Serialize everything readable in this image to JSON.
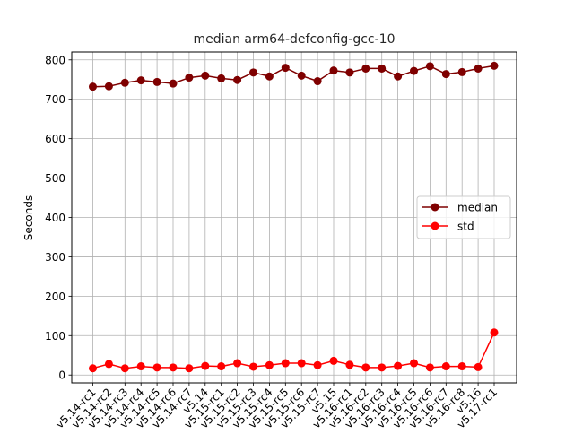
{
  "chart_data": {
    "type": "line",
    "title": "median arm64-defconfig-gcc-10",
    "xlabel": "",
    "ylabel": "Seconds",
    "ylim": [
      -20,
      820
    ],
    "yticks": [
      0,
      100,
      200,
      300,
      400,
      500,
      600,
      700,
      800
    ],
    "grid": true,
    "legend_placement": "center-right",
    "categories": [
      "v5.14-rc1",
      "v5.14-rc2",
      "v5.14-rc3",
      "v5.14-rc4",
      "v5.14-rc5",
      "v5.14-rc6",
      "v5.14-rc7",
      "v5.14",
      "v5.15-rc1",
      "v5.15-rc2",
      "v5.15-rc3",
      "v5.15-rc4",
      "v5.15-rc5",
      "v5.15-rc6",
      "v5.15-rc7",
      "v5.15",
      "v5.16-rc1",
      "v5.16-rc2",
      "v5.16-rc3",
      "v5.16-rc4",
      "v5.16-rc5",
      "v5.16-rc6",
      "v5.16-rc7",
      "v5.16-rc8",
      "v5.16",
      "v5.17-rc1"
    ],
    "series": [
      {
        "name": "median",
        "color": "#7f0000",
        "values": [
          732,
          733,
          742,
          748,
          744,
          740,
          755,
          760,
          753,
          749,
          768,
          758,
          780,
          760,
          746,
          773,
          768,
          778,
          778,
          758,
          772,
          784,
          764,
          769,
          778,
          785
        ]
      },
      {
        "name": "std",
        "color": "#ff0000",
        "values": [
          17,
          28,
          17,
          22,
          19,
          19,
          17,
          23,
          22,
          30,
          21,
          25,
          30,
          30,
          25,
          36,
          26,
          19,
          19,
          23,
          30,
          19,
          22,
          22,
          20,
          108
        ]
      }
    ]
  }
}
